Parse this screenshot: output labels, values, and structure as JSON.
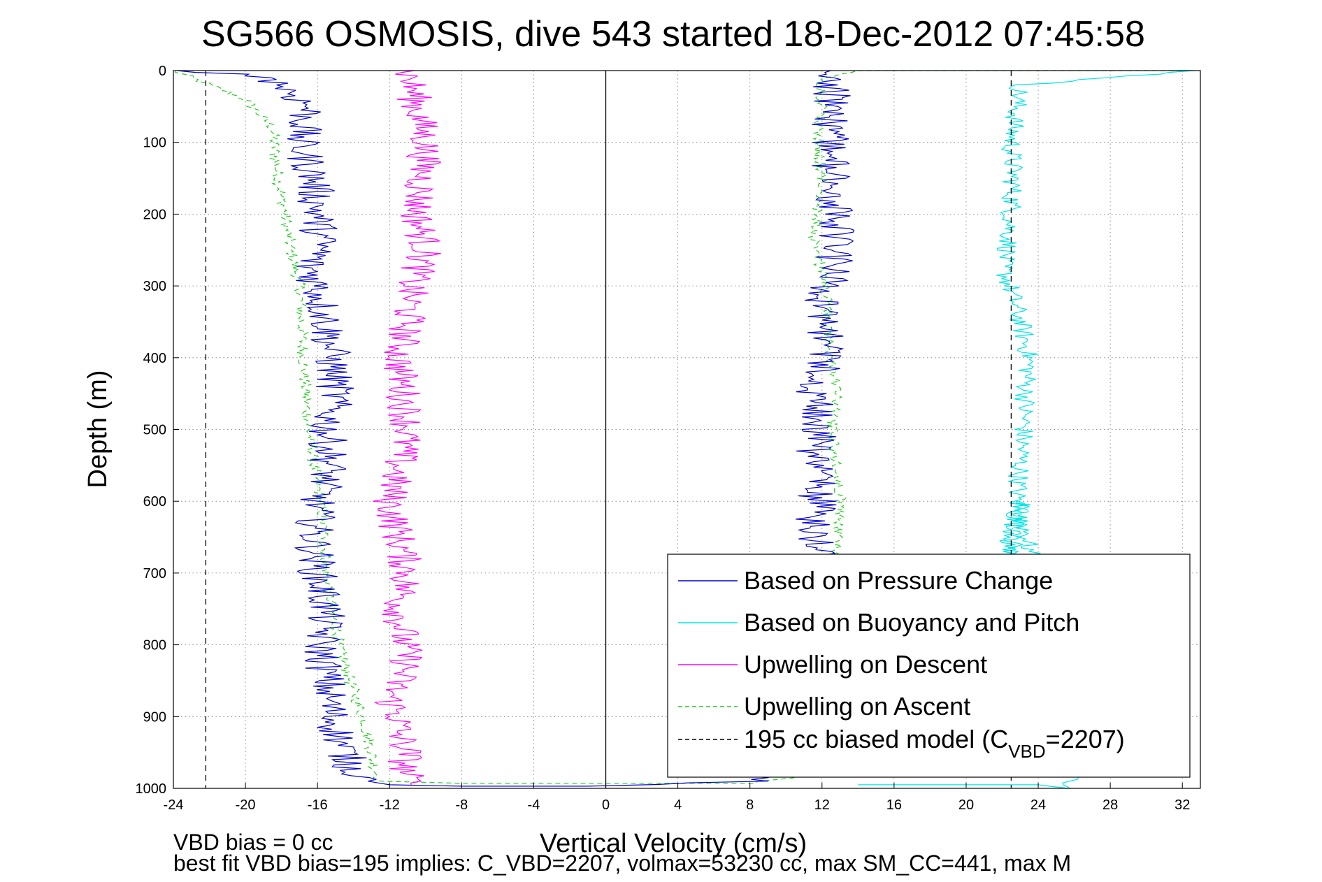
{
  "chart_data": {
    "type": "line",
    "title": "SG566 OSMOSIS, dive 543 started 18-Dec-2012 07:45:58",
    "xlabel": "Vertical Velocity (cm/s)",
    "ylabel": "Depth (m)",
    "xlim": [
      -24,
      33
    ],
    "ylim": [
      1000,
      0
    ],
    "y_reversed": true,
    "xticks": [
      -24,
      -20,
      -16,
      -12,
      -8,
      -4,
      0,
      4,
      8,
      12,
      16,
      20,
      24,
      28,
      32
    ],
    "yticks": [
      0,
      100,
      200,
      300,
      400,
      500,
      600,
      700,
      800,
      900,
      1000
    ],
    "grid": true,
    "legend_position": "bottom-right",
    "reference_lines": [
      {
        "x": 0,
        "style": "solid",
        "color": "#000000"
      }
    ],
    "series": [
      {
        "name": "Based on Pressure Change",
        "color": "#0000cc",
        "style": "solid",
        "noise": 1.1,
        "x": [
          -22.8,
          -18.5,
          -16.5,
          -17.0,
          -16.2,
          -16.0,
          -15.8,
          -16.5,
          -16.0,
          -15.5,
          -15.2,
          -15.0,
          -15.5,
          -15.3,
          -16.0,
          -16.2,
          -16.0,
          -15.5,
          -15.8,
          -15.5,
          -15.2,
          -14.5,
          -14.0,
          -13.5,
          -13.2,
          -12.5,
          -12.0,
          -8.0,
          0,
          8.0,
          10.5,
          10.8,
          10.5,
          10.8,
          11.0,
          11.2,
          12.0,
          11.3,
          11.8,
          11.5,
          11.8,
          11.5,
          12.0,
          12.3,
          12.0,
          12.5,
          12.8,
          12.7,
          12.5,
          12.5,
          12.5,
          12.5
        ],
        "y": [
          0,
          10,
          50,
          100,
          150,
          200,
          250,
          270,
          300,
          350,
          400,
          450,
          500,
          550,
          600,
          650,
          700,
          750,
          800,
          850,
          900,
          950,
          975,
          985,
          990,
          993,
          995,
          997,
          997,
          990,
          950,
          900,
          850,
          800,
          750,
          700,
          680,
          640,
          600,
          550,
          500,
          450,
          420,
          380,
          320,
          280,
          250,
          200,
          150,
          100,
          50,
          0
        ]
      },
      {
        "name": "Based on Buoyancy and Pitch",
        "color": "#00e5e5",
        "style": "solid",
        "noise": 0.6,
        "x": [
          33,
          23.0,
          22.8,
          22.5,
          22.6,
          22.5,
          22.3,
          22.0,
          22.4,
          23.0,
          23.5,
          23.3,
          23.2,
          23.0,
          22.8,
          22.6,
          22.5,
          22.6,
          22.2,
          22.5,
          22.5,
          22.5,
          21.5,
          20.8,
          20.5,
          21.5,
          22.0,
          22.5,
          23.0,
          26.0,
          24.0,
          14.0
        ],
        "y": [
          0,
          20,
          50,
          100,
          150,
          200,
          250,
          270,
          300,
          350,
          400,
          450,
          500,
          550,
          600,
          650,
          700,
          750,
          800,
          850,
          900,
          950,
          900,
          850,
          800,
          750,
          700,
          650,
          600,
          1000,
          995,
          995
        ]
      },
      {
        "name": "Upwelling on Descent",
        "color": "#ff00ff",
        "style": "solid",
        "noise": 1.0,
        "x": [
          -11.0,
          -10.5,
          -10.0,
          -10.2,
          -10.5,
          -10.0,
          -10.8,
          -11.0,
          -11.5,
          -11.2,
          -11.0,
          -11.5,
          -12.0,
          -11.5,
          -11.0,
          -11.5,
          -11.2,
          -11.0,
          -11.5,
          -12.0,
          -11.5,
          -11.5,
          -11.0,
          -11.2,
          -11.0,
          -10.8
        ],
        "y": [
          0,
          50,
          100,
          150,
          200,
          250,
          300,
          350,
          400,
          450,
          500,
          550,
          600,
          650,
          700,
          750,
          800,
          825,
          850,
          875,
          900,
          925,
          950,
          970,
          985,
          995
        ]
      },
      {
        "name": "Upwelling on Ascent",
        "color": "#22cc22",
        "style": "dashed",
        "noise": 0.35,
        "x": [
          -24.0,
          -20.0,
          -18.5,
          -18.2,
          -17.8,
          -17.5,
          -17.0,
          -16.8,
          -16.5,
          -16.2,
          -15.8,
          -15.5,
          -15.2,
          -14.8,
          -14.2,
          -13.5,
          -13.0,
          -12.8,
          -12.5,
          -8.0,
          0,
          8.0,
          13.0,
          13.2,
          13.0,
          12.8,
          13.0,
          12.5,
          12.8,
          12.5,
          12.3,
          12.2,
          12.0,
          11.5,
          11.8,
          12.0,
          11.8,
          12.0,
          12.0,
          14.0,
          32
        ],
        "y": [
          0,
          40,
          80,
          150,
          200,
          250,
          300,
          400,
          500,
          550,
          600,
          700,
          750,
          800,
          850,
          900,
          950,
          975,
          990,
          993,
          993,
          993,
          975,
          900,
          800,
          700,
          600,
          500,
          450,
          400,
          350,
          300,
          275,
          250,
          200,
          150,
          100,
          50,
          10,
          0,
          0
        ]
      },
      {
        "name": "195 cc biased model (C",
        "name_sub": "VBD",
        "name_suffix": "=2207)",
        "color": "#000000",
        "style": "dashed",
        "noise": 0,
        "segments": [
          {
            "x": [
              -22.2,
              -22.2
            ],
            "y": [
              0,
              1000
            ]
          },
          {
            "x": [
              22.5,
              22.5
            ],
            "y": [
              0,
              1000
            ]
          }
        ]
      }
    ],
    "annotations": [
      "VBD bias = 0 cc",
      "best fit VBD bias=195 implies: C_VBD=2207, volmax=53230 cc, max SM_CC=441, max M"
    ]
  }
}
